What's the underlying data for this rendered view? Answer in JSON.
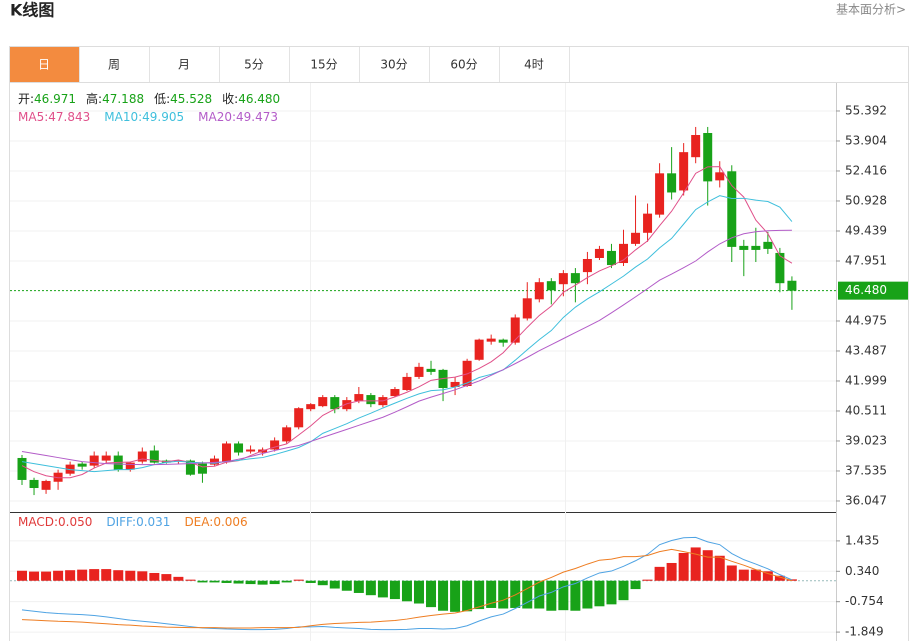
{
  "header": {
    "title": "K线图",
    "link": "基本面分析>"
  },
  "tabs": [
    "日",
    "周",
    "月",
    "5分",
    "15分",
    "30分",
    "60分",
    "4时"
  ],
  "active_tab": 0,
  "chart_data": [
    {
      "type": "candlestick",
      "up_color": "#e8231f",
      "down_color": "#18a218",
      "grid": true,
      "info": [
        {
          "name": "开:",
          "value": "46.971"
        },
        {
          "name": "高:",
          "value": "47.188"
        },
        {
          "name": "低:",
          "value": "45.528"
        },
        {
          "name": "收:",
          "value": "46.480"
        }
      ],
      "info_color": "#18a218",
      "open": [
        38.18,
        37.09,
        36.6,
        37.0,
        37.4,
        37.9,
        37.8,
        38.05,
        38.3,
        37.6,
        38.0,
        38.55,
        38.05,
        38.0,
        38.05,
        37.9,
        37.85,
        38.0,
        38.9,
        38.5,
        38.45,
        38.6,
        39.0,
        39.7,
        40.6,
        40.75,
        41.2,
        40.6,
        41.0,
        41.3,
        40.8,
        41.25,
        41.55,
        42.2,
        42.6,
        42.55,
        41.7,
        41.75,
        43.05,
        43.95,
        44.05,
        43.9,
        45.1,
        46.05,
        46.95,
        46.8,
        47.35,
        47.4,
        48.1,
        48.45,
        47.85,
        48.8,
        49.35,
        50.25,
        52.3,
        51.45,
        53.1,
        54.3,
        51.95,
        52.4,
        48.7,
        48.7,
        48.9,
        48.35,
        46.971
      ],
      "high": [
        38.33,
        37.2,
        37.1,
        37.6,
        38.0,
        38.0,
        38.5,
        38.5,
        38.5,
        38.0,
        38.7,
        38.8,
        38.1,
        38.1,
        38.1,
        38.0,
        38.3,
        39.0,
        39.0,
        38.8,
        38.7,
        39.2,
        39.8,
        40.7,
        40.9,
        41.3,
        41.3,
        41.2,
        41.7,
        41.4,
        41.3,
        41.7,
        42.4,
        42.9,
        43.0,
        42.6,
        42.2,
        43.1,
        44.1,
        44.3,
        44.1,
        45.3,
        46.9,
        47.1,
        47.1,
        47.5,
        47.6,
        48.4,
        48.7,
        48.8,
        49.5,
        51.2,
        50.8,
        52.8,
        53.6,
        53.8,
        54.6,
        54.6,
        52.9,
        52.7,
        49.0,
        49.6,
        49.4,
        48.6,
        47.188
      ],
      "low": [
        36.84,
        36.34,
        36.4,
        36.6,
        37.3,
        37.6,
        37.7,
        37.9,
        37.5,
        37.5,
        37.9,
        37.9,
        37.9,
        37.9,
        37.3,
        36.95,
        37.8,
        37.9,
        38.3,
        38.4,
        38.3,
        38.5,
        38.9,
        39.6,
        40.5,
        40.7,
        40.4,
        40.5,
        40.9,
        40.7,
        40.7,
        41.2,
        41.5,
        42.1,
        42.3,
        41.0,
        41.3,
        41.7,
        43.0,
        43.8,
        43.7,
        43.8,
        45.0,
        45.9,
        45.8,
        46.2,
        45.9,
        46.8,
        48.0,
        47.6,
        47.7,
        48.7,
        48.9,
        50.1,
        51.0,
        51.2,
        52.8,
        50.7,
        51.6,
        47.9,
        47.2,
        47.9,
        48.3,
        46.4,
        45.528
      ],
      "close": [
        37.09,
        36.69,
        37.04,
        37.45,
        37.85,
        37.75,
        38.3,
        38.3,
        37.6,
        37.95,
        38.5,
        37.95,
        37.95,
        38.05,
        37.35,
        37.4,
        38.15,
        38.9,
        38.45,
        38.6,
        38.6,
        39.05,
        39.7,
        40.65,
        40.85,
        41.2,
        40.6,
        41.05,
        41.35,
        40.85,
        41.2,
        41.6,
        42.2,
        42.7,
        42.45,
        41.65,
        41.95,
        43.0,
        44.05,
        44.1,
        43.9,
        45.15,
        46.1,
        46.9,
        46.5,
        47.35,
        46.85,
        48.05,
        48.55,
        47.75,
        48.8,
        49.35,
        50.3,
        52.3,
        51.35,
        53.35,
        54.2,
        51.9,
        52.35,
        48.65,
        48.5,
        48.5,
        48.55,
        46.85,
        46.48
      ],
      "series": [
        {
          "name": "MA5:",
          "legend_value": "47.843",
          "color": "#e0508a",
          "values": [
            37.8,
            37.5,
            37.3,
            37.2,
            37.2,
            37.36,
            37.68,
            37.93,
            37.96,
            37.98,
            38.13,
            38.06,
            37.99,
            38.08,
            37.96,
            37.74,
            37.77,
            37.97,
            38.05,
            38.3,
            38.54,
            38.72,
            38.88,
            39.32,
            39.77,
            40.29,
            40.6,
            40.87,
            41.01,
            41.01,
            41.01,
            41.21,
            41.44,
            41.71,
            42.03,
            42.12,
            42.19,
            42.35,
            42.62,
            42.95,
            43.4,
            44.04,
            44.66,
            45.25,
            45.71,
            46.4,
            46.75,
            47.13,
            47.46,
            47.71,
            48.0,
            48.5,
            48.95,
            49.7,
            50.42,
            51.33,
            52.3,
            52.62,
            52.63,
            51.69,
            51.12,
            49.98,
            49.31,
            48.21,
            47.84
          ]
        },
        {
          "name": "MA10:",
          "legend_value": "49.905",
          "color": "#3fbfdc",
          "values": [
            38.0,
            37.9,
            37.8,
            37.7,
            37.6,
            37.55,
            37.5,
            37.55,
            37.6,
            37.6,
            37.7,
            37.85,
            37.96,
            38.02,
            37.97,
            37.94,
            37.92,
            38.01,
            38.06,
            38.14,
            38.2,
            38.35,
            38.52,
            38.7,
            38.98,
            39.4,
            39.64,
            39.88,
            40.16,
            40.4,
            40.66,
            40.9,
            41.14,
            41.36,
            41.52,
            41.56,
            41.7,
            41.9,
            42.17,
            42.33,
            42.55,
            43.03,
            43.55,
            44.05,
            44.5,
            45.15,
            45.66,
            46.07,
            46.42,
            46.81,
            47.2,
            47.65,
            48.05,
            48.6,
            49.07,
            49.78,
            50.5,
            50.88,
            51.19,
            51.05,
            51.06,
            50.97,
            50.9,
            50.62,
            49.905
          ]
        },
        {
          "name": "MA20:",
          "legend_value": "49.473",
          "color": "#b35cc8",
          "values": [
            38.5,
            38.4,
            38.3,
            38.2,
            38.1,
            38.0,
            37.95,
            37.9,
            37.88,
            37.86,
            37.85,
            37.85,
            37.86,
            37.88,
            37.9,
            37.93,
            37.96,
            38.0,
            38.12,
            38.25,
            38.4,
            38.55,
            38.68,
            38.8,
            39.0,
            39.2,
            39.4,
            39.6,
            39.8,
            40.0,
            40.2,
            40.45,
            40.72,
            41.0,
            41.2,
            41.38,
            41.56,
            41.78,
            42.0,
            42.28,
            42.56,
            42.86,
            43.17,
            43.5,
            43.8,
            44.1,
            44.4,
            44.7,
            45.0,
            45.38,
            45.77,
            46.17,
            46.58,
            47.0,
            47.3,
            47.62,
            47.95,
            48.4,
            48.8,
            49.1,
            49.3,
            49.4,
            49.45,
            49.47,
            49.473
          ]
        }
      ],
      "last_price": {
        "value": 46.48,
        "label": "46.480"
      },
      "last_price_color": "#18a218",
      "ylim": [
        35.5,
        56.78
      ],
      "yticks": [
        55.392,
        53.904,
        52.416,
        50.928,
        49.439,
        47.951,
        44.975,
        43.487,
        41.999,
        40.511,
        39.023,
        37.535,
        36.047
      ]
    },
    {
      "type": "macd",
      "up_color": "#e8231f",
      "down_color": "#18a218",
      "macd_label": {
        "name": "MACD:",
        "legend_value": "0.050",
        "color": "#e03a3a"
      },
      "histogram": [
        0.36,
        0.33,
        0.33,
        0.36,
        0.38,
        0.4,
        0.42,
        0.42,
        0.38,
        0.36,
        0.34,
        0.28,
        0.24,
        0.14,
        0.04,
        -0.06,
        -0.06,
        -0.08,
        -0.1,
        -0.12,
        -0.14,
        -0.12,
        -0.06,
        0.04,
        -0.08,
        -0.16,
        -0.28,
        -0.36,
        -0.44,
        -0.52,
        -0.6,
        -0.66,
        -0.74,
        -0.82,
        -0.95,
        -1.08,
        -1.12,
        -1.1,
        -1.02,
        -0.98,
        -1.0,
        -0.98,
        -1.0,
        -1.0,
        -1.08,
        -1.06,
        -1.08,
        -1.0,
        -0.92,
        -0.85,
        -0.7,
        -0.3,
        0.04,
        0.5,
        0.64,
        1.0,
        1.2,
        1.1,
        0.9,
        0.55,
        0.4,
        0.4,
        0.34,
        0.18,
        0.05
      ],
      "series": [
        {
          "name": "DIFF:",
          "legend_value": "0.031",
          "color": "#4fa3e3",
          "values": [
            -1.05,
            -1.1,
            -1.15,
            -1.18,
            -1.2,
            -1.22,
            -1.25,
            -1.3,
            -1.36,
            -1.42,
            -1.46,
            -1.5,
            -1.55,
            -1.6,
            -1.65,
            -1.7,
            -1.72,
            -1.74,
            -1.75,
            -1.76,
            -1.76,
            -1.75,
            -1.72,
            -1.66,
            -1.66,
            -1.65,
            -1.68,
            -1.7,
            -1.72,
            -1.75,
            -1.76,
            -1.76,
            -1.75,
            -1.72,
            -1.72,
            -1.74,
            -1.72,
            -1.62,
            -1.45,
            -1.3,
            -1.2,
            -1.0,
            -0.78,
            -0.55,
            -0.42,
            -0.22,
            -0.1,
            0.1,
            0.28,
            0.35,
            0.52,
            0.72,
            0.95,
            1.3,
            1.45,
            1.55,
            1.56,
            1.4,
            1.3,
            0.98,
            0.76,
            0.6,
            0.43,
            0.22,
            0.031
          ]
        },
        {
          "name": "DEA:",
          "legend_value": "0.006",
          "color": "#ee7d22",
          "values": [
            -1.4,
            -1.42,
            -1.44,
            -1.46,
            -1.47,
            -1.49,
            -1.52,
            -1.55,
            -1.58,
            -1.6,
            -1.63,
            -1.65,
            -1.67,
            -1.68,
            -1.69,
            -1.69,
            -1.69,
            -1.7,
            -1.7,
            -1.7,
            -1.69,
            -1.69,
            -1.69,
            -1.68,
            -1.62,
            -1.57,
            -1.54,
            -1.52,
            -1.5,
            -1.49,
            -1.46,
            -1.43,
            -1.38,
            -1.31,
            -1.25,
            -1.2,
            -1.16,
            -1.07,
            -0.94,
            -0.81,
            -0.7,
            -0.51,
            -0.28,
            -0.05,
            0.12,
            0.31,
            0.44,
            0.6,
            0.74,
            0.78,
            0.87,
            0.87,
            0.91,
            1.05,
            1.13,
            1.05,
            0.96,
            0.85,
            0.85,
            0.7,
            0.56,
            0.4,
            0.26,
            0.13,
            0.006
          ]
        }
      ],
      "ylim": [
        -2.17,
        2.44
      ],
      "yticks": [
        1.435,
        {
          "value": 0.34,
          "label": "0.340"
        },
        -0.754,
        -1.849
      ]
    }
  ]
}
